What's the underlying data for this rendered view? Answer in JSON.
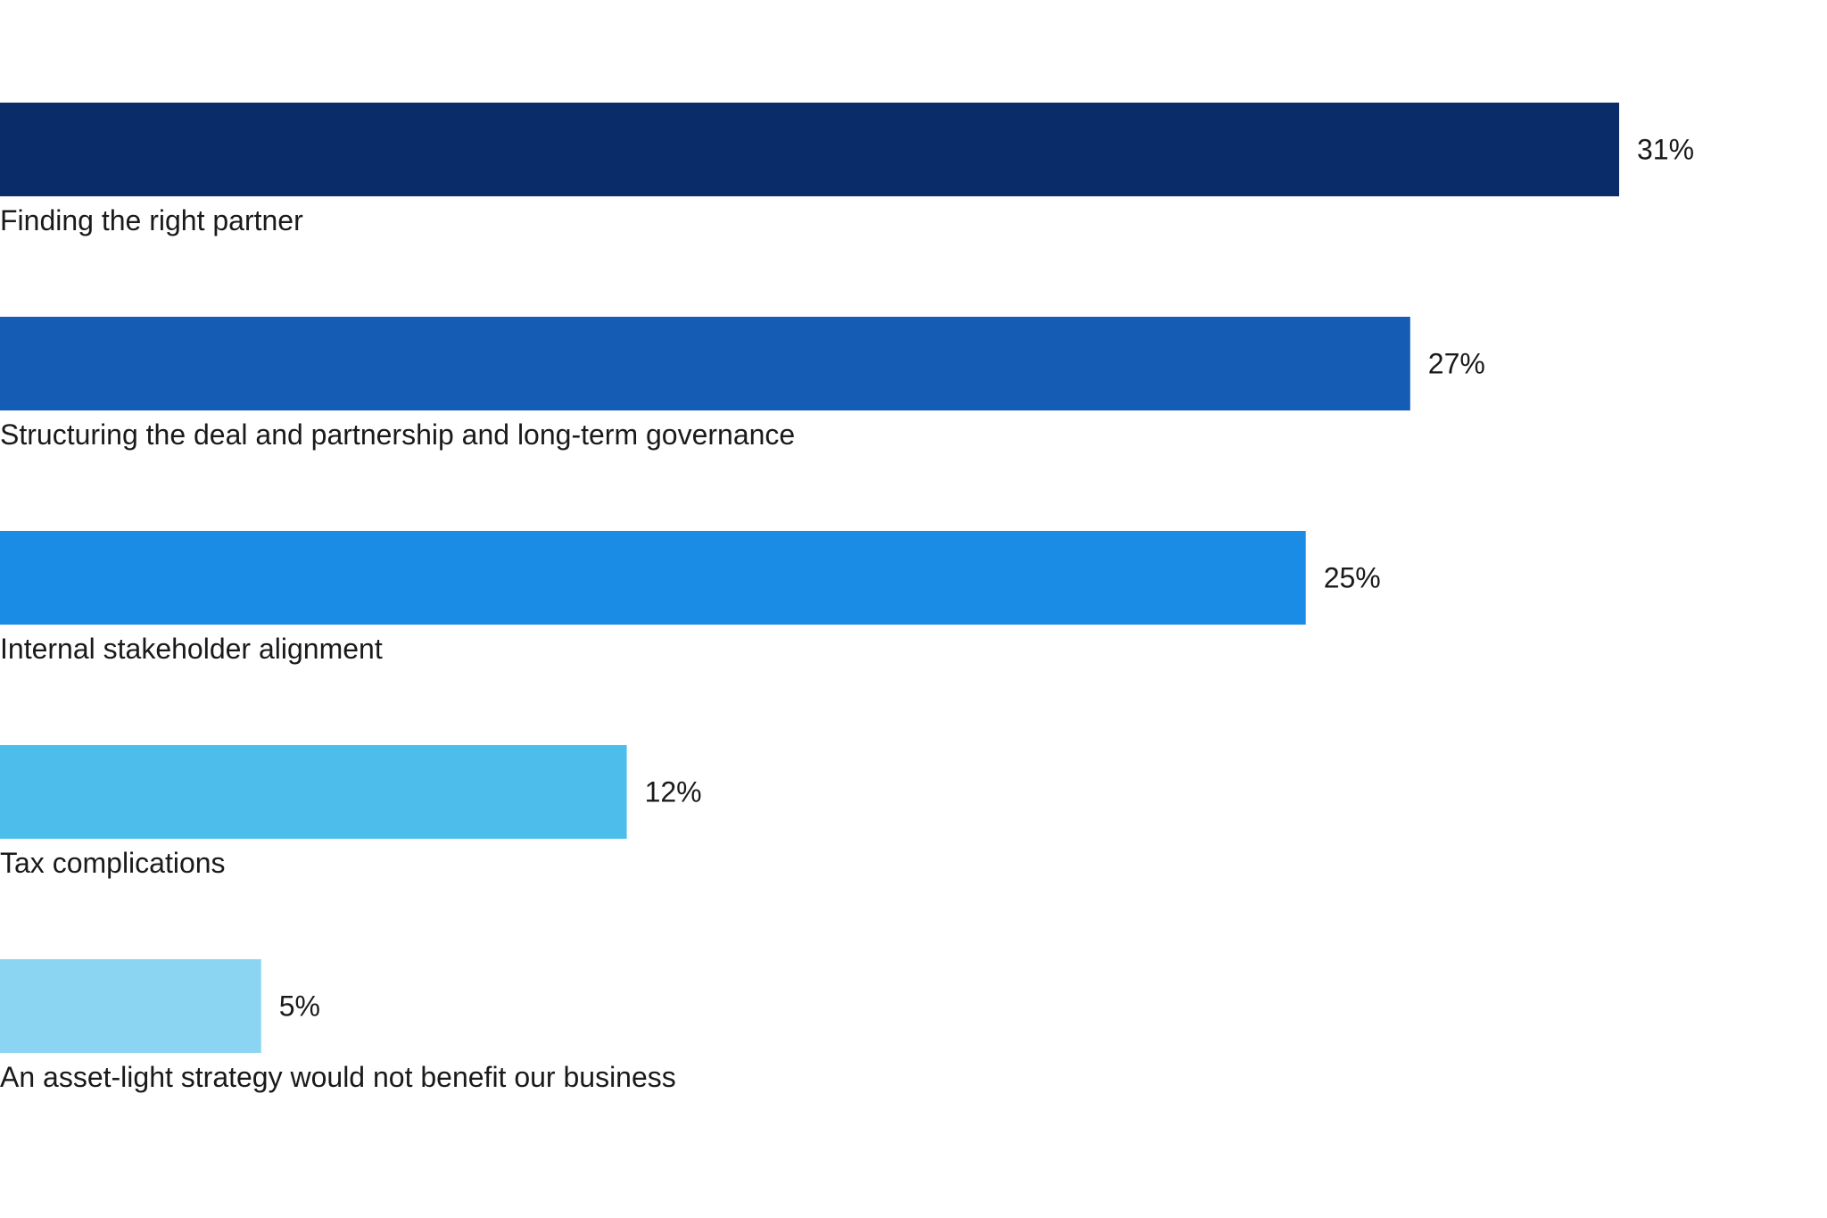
{
  "chart_data": {
    "type": "bar",
    "orientation": "horizontal",
    "categories": [
      "Finding the right partner",
      "Structuring the deal and partnership and long-term governance",
      "Internal stakeholder alignment",
      "Tax complications",
      "An asset-light strategy would not benefit our business"
    ],
    "values": [
      31,
      27,
      25,
      12,
      5
    ],
    "value_labels": [
      "31%",
      "27%",
      "25%",
      "12%",
      "5%"
    ],
    "colors": [
      "#0a2d69",
      "#155cb4",
      "#1a8ce6",
      "#4dbeeb",
      "#8cd5f2"
    ],
    "title": "",
    "xlabel": "",
    "ylabel": "",
    "xlim": [
      0,
      35
    ],
    "grid": false,
    "legend": "none"
  }
}
